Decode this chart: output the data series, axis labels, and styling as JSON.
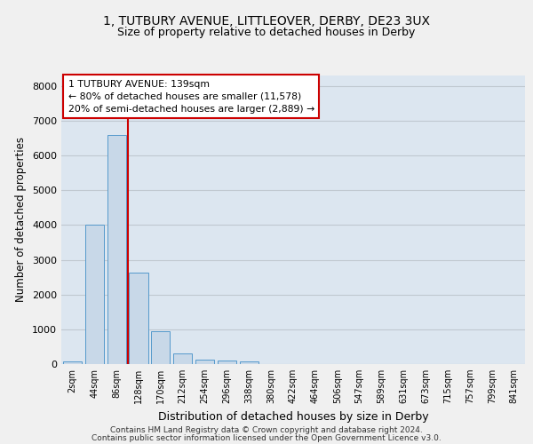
{
  "title1": "1, TUTBURY AVENUE, LITTLEOVER, DERBY, DE23 3UX",
  "title2": "Size of property relative to detached houses in Derby",
  "xlabel": "Distribution of detached houses by size in Derby",
  "ylabel": "Number of detached properties",
  "categories": [
    "2sqm",
    "44sqm",
    "86sqm",
    "128sqm",
    "170sqm",
    "212sqm",
    "254sqm",
    "296sqm",
    "338sqm",
    "380sqm",
    "422sqm",
    "464sqm",
    "506sqm",
    "547sqm",
    "589sqm",
    "631sqm",
    "673sqm",
    "715sqm",
    "757sqm",
    "799sqm",
    "841sqm"
  ],
  "values": [
    75,
    4000,
    6600,
    2620,
    950,
    310,
    140,
    95,
    80,
    0,
    0,
    0,
    0,
    0,
    0,
    0,
    0,
    0,
    0,
    0,
    0
  ],
  "bar_color": "#c8d8e8",
  "bar_edge_color": "#5599cc",
  "vline_color": "#cc0000",
  "vline_xindex": 2.5,
  "annotation_title": "1 TUTBURY AVENUE: 139sqm",
  "annotation_line1": "← 80% of detached houses are smaller (11,578)",
  "annotation_line2": "20% of semi-detached houses are larger (2,889) →",
  "annotation_box_color": "#ffffff",
  "annotation_box_edge_color": "#cc0000",
  "ylim": [
    0,
    8300
  ],
  "yticks": [
    0,
    1000,
    2000,
    3000,
    4000,
    5000,
    6000,
    7000,
    8000
  ],
  "grid_color": "#c0c8d0",
  "background_color": "#dce6f0",
  "fig_background_color": "#f0f0f0",
  "footer1": "Contains HM Land Registry data © Crown copyright and database right 2024.",
  "footer2": "Contains public sector information licensed under the Open Government Licence v3.0."
}
